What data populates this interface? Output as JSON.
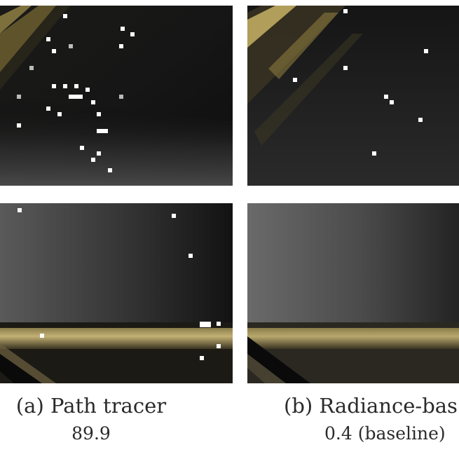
{
  "figure": {
    "columns": [
      {
        "id": "a",
        "label": "(a) Path tracer",
        "value": "89.9"
      },
      {
        "id": "b",
        "label": "(b) Radiance-bas",
        "value": "0.4 (baseline)"
      }
    ],
    "colors": {
      "background": "#ffffff",
      "dark_render": "#111111",
      "mid_gray": "#4a4a4a",
      "gold_highlight": "#c9b46a",
      "firefly": "#ffffff"
    }
  }
}
